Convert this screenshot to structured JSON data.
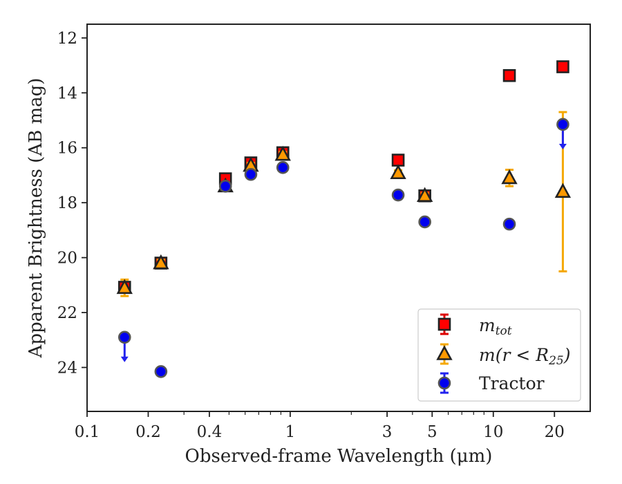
{
  "chart_data": {
    "type": "scatter",
    "title": "",
    "xlabel": "Observed-frame Wavelength (μm)",
    "ylabel": "Apparent Brightness (AB mag)",
    "xscale": "log",
    "xlim": [
      0.1,
      30
    ],
    "ylim": [
      25.6,
      11.5
    ],
    "y_inverted": true,
    "grid": false,
    "legend_position": "bottom-right",
    "xticks": [
      {
        "value": 0.1,
        "label": "0.1"
      },
      {
        "value": 0.2,
        "label": "0.2"
      },
      {
        "value": 0.4,
        "label": "0.4"
      },
      {
        "value": 1,
        "label": "1"
      },
      {
        "value": 3,
        "label": "3"
      },
      {
        "value": 5,
        "label": "5"
      },
      {
        "value": 10,
        "label": "10"
      },
      {
        "value": 20,
        "label": "20"
      }
    ],
    "yticks": [
      {
        "value": 12,
        "label": "12"
      },
      {
        "value": 14,
        "label": "14"
      },
      {
        "value": 16,
        "label": "16"
      },
      {
        "value": 18,
        "label": "18"
      },
      {
        "value": 20,
        "label": "20"
      },
      {
        "value": 22,
        "label": "22"
      },
      {
        "value": 24,
        "label": "24"
      }
    ],
    "series": [
      {
        "key": "mtot",
        "legend_main": "m",
        "legend_sub": "tot",
        "marker": "square",
        "color": "#ff0000",
        "errcolor": "#dd0000",
        "points": [
          {
            "x": 0.153,
            "y": 21.08,
            "err": 0.15
          },
          {
            "x": 0.231,
            "y": 20.2,
            "err": 0.1
          },
          {
            "x": 0.48,
            "y": 17.13,
            "err": 0.1
          },
          {
            "x": 0.64,
            "y": 16.55,
            "err": 0.1
          },
          {
            "x": 0.92,
            "y": 16.18,
            "err": 0.1
          },
          {
            "x": 3.4,
            "y": 16.45,
            "err": 0.08
          },
          {
            "x": 4.6,
            "y": 17.75,
            "err": 0.08
          },
          {
            "x": 12.0,
            "y": 13.37,
            "err": 0.05
          },
          {
            "x": 22.0,
            "y": 13.05,
            "err": 0.05
          }
        ]
      },
      {
        "key": "mr25",
        "legend_main": "m(r < R",
        "legend_sub": "25",
        "legend_tail": ")",
        "marker": "triangle",
        "color": "#ff9900",
        "errcolor": "#f5a800",
        "points": [
          {
            "x": 0.153,
            "y": 21.1,
            "err": 0.3
          },
          {
            "x": 0.231,
            "y": 20.2,
            "err": 0.12
          },
          {
            "x": 0.48,
            "y": 17.4,
            "err": 0.1
          },
          {
            "x": 0.64,
            "y": 16.65,
            "err": 0.1
          },
          {
            "x": 0.92,
            "y": 16.25,
            "err": 0.1
          },
          {
            "x": 3.4,
            "y": 16.92,
            "err": 0.1
          },
          {
            "x": 4.6,
            "y": 17.75,
            "err": 0.1
          },
          {
            "x": 12.0,
            "y": 17.1,
            "err": 0.3
          },
          {
            "x": 22.0,
            "y": 17.6,
            "err": 2.9
          }
        ]
      },
      {
        "key": "tractor",
        "legend_main": "Tractor",
        "marker": "circle",
        "color": "#0000ee",
        "errcolor": "#2222ee",
        "points": [
          {
            "x": 0.153,
            "y": 22.9,
            "upper_limit": true
          },
          {
            "x": 0.231,
            "y": 24.15,
            "err": 0.05
          },
          {
            "x": 0.48,
            "y": 17.4,
            "err": 0.05
          },
          {
            "x": 0.64,
            "y": 16.97,
            "err": 0.05
          },
          {
            "x": 0.92,
            "y": 16.72,
            "err": 0.05
          },
          {
            "x": 3.4,
            "y": 17.72,
            "err": 0.05
          },
          {
            "x": 4.6,
            "y": 18.7,
            "err": 0.05
          },
          {
            "x": 12.0,
            "y": 18.78,
            "err": 0.05
          },
          {
            "x": 22.0,
            "y": 15.15,
            "upper_limit": true
          }
        ]
      }
    ]
  }
}
